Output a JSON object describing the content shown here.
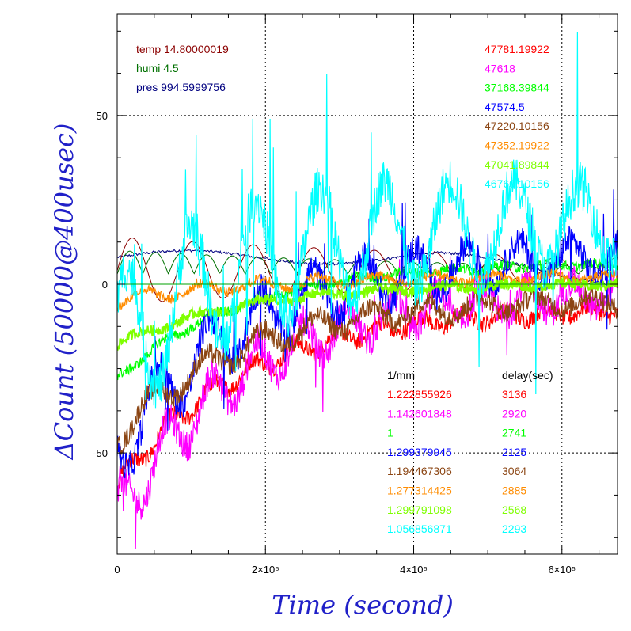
{
  "chart_data": {
    "type": "line",
    "xlabel": "Time (second)",
    "ylabel": "ΔCount (50000@400usec)",
    "xlim": [
      0,
      675000
    ],
    "ylim": [
      -80,
      80
    ],
    "x_ticks": [
      {
        "value": 0,
        "label": "0"
      },
      {
        "value": 200000,
        "label": "2×10⁵"
      },
      {
        "value": 400000,
        "label": "4×10⁵"
      },
      {
        "value": 600000,
        "label": "6×10⁵"
      }
    ],
    "y_ticks": [
      {
        "value": 50,
        "label": "50"
      },
      {
        "value": 0,
        "label": "0"
      },
      {
        "value": -50,
        "label": "-50"
      }
    ],
    "grid": true,
    "env_legend": [
      {
        "text": "temp 14.80000019",
        "color": "#8b0000"
      },
      {
        "text": "humi 4.5",
        "color": "#007000"
      },
      {
        "text": "pres 994.5999756",
        "color": "#000080"
      }
    ],
    "legend_header": {
      "col1": "1/mm",
      "col2": "delay(sec)"
    },
    "series": [
      {
        "name": "47781.19922",
        "color": "#ff0000",
        "scale": "1.222855926",
        "delay": "3136",
        "start": -60,
        "end": -8,
        "noise": 5,
        "spike": 3
      },
      {
        "name": "47618",
        "color": "#ff00ff",
        "scale": "1.142601848",
        "delay": "2920",
        "start": -70,
        "end": -3,
        "noise": 9,
        "spike": 8
      },
      {
        "name": "37168.39844",
        "color": "#00ff00",
        "scale": "1",
        "delay": "2741",
        "start": -28,
        "end": 6,
        "noise": 3,
        "spike": 1
      },
      {
        "name": "47574.5",
        "color": "#0000ff",
        "scale": "1.299379945",
        "delay": "2125",
        "start": -50,
        "end": 8,
        "noise": 9,
        "spike": 10
      },
      {
        "name": "47220.10156",
        "color": "#8b4513",
        "scale": "1.194467306",
        "delay": "3064",
        "start": -45,
        "end": -5,
        "noise": 6,
        "spike": 4
      },
      {
        "name": "47352.19922",
        "color": "#ff8c00",
        "scale": "1.277314425",
        "delay": "2885",
        "start": -5,
        "end": 2,
        "noise": 3,
        "spike": 2
      },
      {
        "name": "47041.89844",
        "color": "#7fff00",
        "scale": "1.299791098",
        "delay": "2568",
        "start": -18,
        "end": 0,
        "noise": 3,
        "spike": 1
      },
      {
        "name": "46760.10156",
        "color": "#00ffff",
        "scale": "1.056856871",
        "delay": "2293",
        "start": -20,
        "end": 18,
        "noise": 14,
        "spike": 22
      }
    ]
  }
}
